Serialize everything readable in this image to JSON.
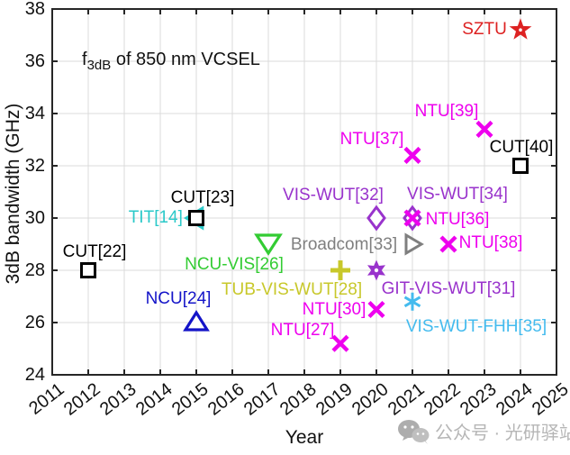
{
  "watermark": {
    "icon": "wechat-icon",
    "text": "公众号 · 光研驿站"
  },
  "chart_data": {
    "type": "scatter",
    "title": {
      "prefix": "f",
      "subscript": "3dB",
      "suffix": " of 850 nm VCSEL"
    },
    "xlabel": "Year",
    "ylabel": "3dB bandwidth (GHz)",
    "xlim": [
      2011,
      2025
    ],
    "ylim": [
      24,
      38
    ],
    "xticks": [
      "2011",
      "2012",
      "2013",
      "2014",
      "2015",
      "2016",
      "2017",
      "2018",
      "2019",
      "2020",
      "2021",
      "2022",
      "2023",
      "2024",
      "2025"
    ],
    "yticks": [
      "24",
      "26",
      "28",
      "30",
      "32",
      "34",
      "36",
      "38"
    ],
    "grid": "on",
    "box": "on",
    "x_tick_rotation_deg": 38,
    "legend": "none",
    "points": [
      {
        "label": "CUT[22]",
        "year": 2012,
        "bandwidth_ghz": 28,
        "marker": "open-square",
        "color": "#000000",
        "label_offset": [
          7,
          -20
        ]
      },
      {
        "label": "TIT[14]",
        "year": 2014.97,
        "bandwidth_ghz": 30,
        "marker": "open-triangle-left",
        "color": "#2bc9c9",
        "label_offset": [
          -44,
          0
        ]
      },
      {
        "label": "CUT[23]",
        "year": 2015,
        "bandwidth_ghz": 30,
        "marker": "open-square",
        "color": "#000000",
        "label_offset": [
          7,
          -22
        ]
      },
      {
        "label": "NCU[24]",
        "year": 2015,
        "bandwidth_ghz": 26,
        "marker": "open-triangle-up",
        "color": "#1414c8",
        "label_offset": [
          -20,
          -26
        ]
      },
      {
        "label": "NCU-VIS[26]",
        "year": 2017,
        "bandwidth_ghz": 29,
        "marker": "open-triangle-down",
        "color": "#33cc33",
        "label_offset": [
          -38,
          23
        ]
      },
      {
        "label": "TUB-VIS-WUT[28]",
        "year": 2019,
        "bandwidth_ghz": 28,
        "marker": "plus",
        "color": "#c8c82a",
        "label_offset": [
          -54,
          22
        ]
      },
      {
        "label": "NTU[27]",
        "year": 2019,
        "bandwidth_ghz": 25.2,
        "marker": "x",
        "color": "#ee00ee",
        "label_offset": [
          -42,
          -14
        ]
      },
      {
        "label": "NTU[30]",
        "year": 2020,
        "bandwidth_ghz": 26.5,
        "marker": "x",
        "color": "#ee00ee",
        "label_offset": [
          -47,
          0
        ]
      },
      {
        "label": "GIT-VIS-WUT[31]",
        "year": 2020,
        "bandwidth_ghz": 28,
        "marker": "filled-hexagram",
        "color": "#9933cc",
        "label_offset": [
          80,
          21
        ]
      },
      {
        "label": "VIS-WUT[32]",
        "year": 2020,
        "bandwidth_ghz": 30,
        "marker": "open-diamond",
        "color": "#9933cc",
        "label_offset": [
          -48,
          -25
        ]
      },
      {
        "label": "Broadcom[33]",
        "year": 2021,
        "bandwidth_ghz": 29,
        "marker": "open-triangle-right",
        "color": "#7f7f7f",
        "label_offset": [
          -76,
          1
        ]
      },
      {
        "label": "VIS-WUT[34]",
        "year": 2021,
        "bandwidth_ghz": 30,
        "marker": "open-diamond",
        "color": "#9933cc",
        "label_offset": [
          50,
          -26
        ]
      },
      {
        "label": "NTU[36]",
        "year": 2021,
        "bandwidth_ghz": 30,
        "marker": "x",
        "color": "#ee00ee",
        "label_offset": [
          50,
          2
        ]
      },
      {
        "label": "VIS-WUT-FHH[35]",
        "year": 2021,
        "bandwidth_ghz": 26.8,
        "marker": "asterisk",
        "color": "#44bbee",
        "label_offset": [
          71,
          28
        ]
      },
      {
        "label": "NTU[37]",
        "year": 2021,
        "bandwidth_ghz": 32.4,
        "marker": "x",
        "color": "#ee00ee",
        "label_offset": [
          -45,
          -17
        ]
      },
      {
        "label": "NTU[38]",
        "year": 2022,
        "bandwidth_ghz": 29,
        "marker": "x",
        "color": "#ee00ee",
        "label_offset": [
          47,
          -1
        ]
      },
      {
        "label": "NTU[39]",
        "year": 2023,
        "bandwidth_ghz": 33.4,
        "marker": "x",
        "color": "#ee00ee",
        "label_offset": [
          -42,
          -19
        ]
      },
      {
        "label": "CUT[40]",
        "year": 2024,
        "bandwidth_ghz": 32,
        "marker": "open-square",
        "color": "#000000",
        "label_offset": [
          1,
          -20
        ]
      },
      {
        "label": "SZTU",
        "year": 2024,
        "bandwidth_ghz": 37.2,
        "marker": "filled-star",
        "color": "#dd2222",
        "label_offset": [
          -40,
          0
        ]
      }
    ]
  }
}
